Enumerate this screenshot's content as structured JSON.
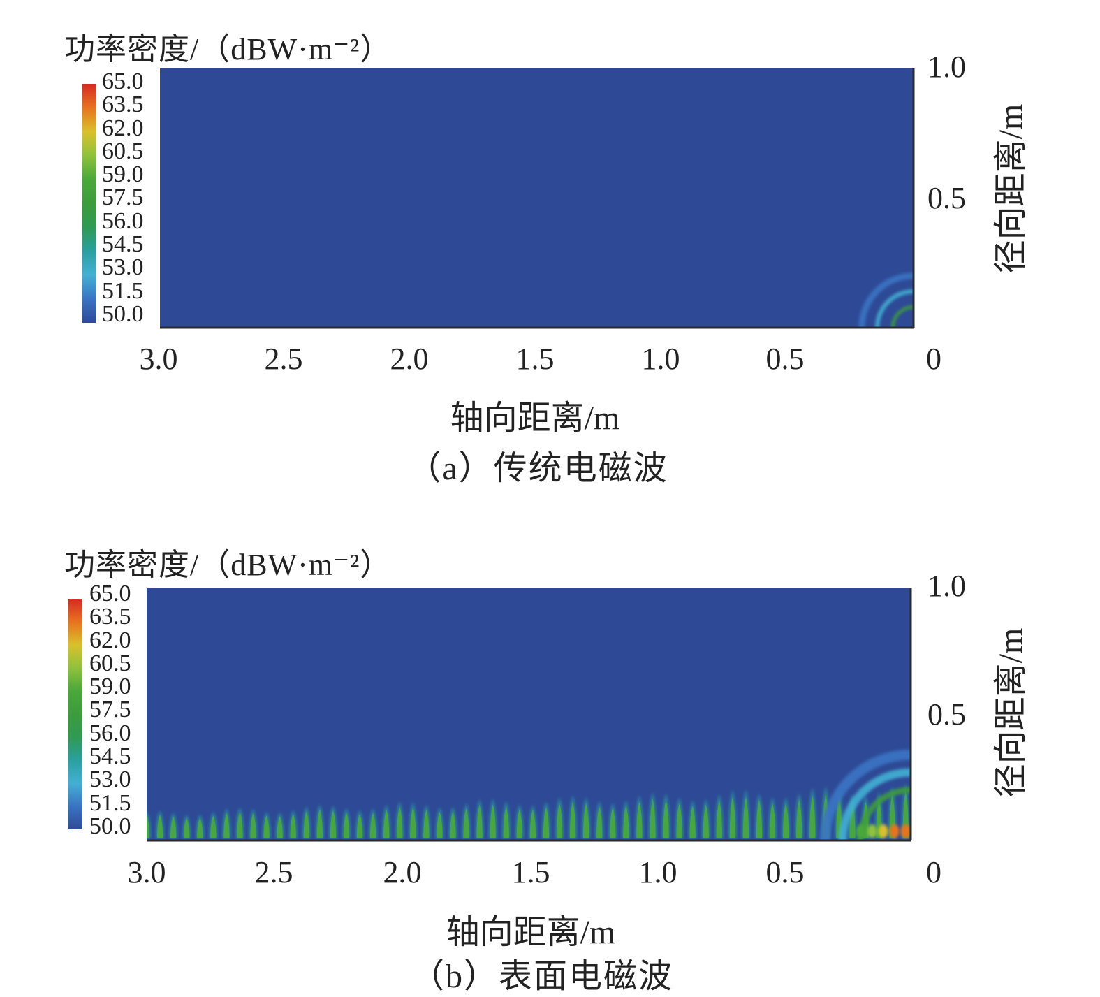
{
  "figure": {
    "colorbar": {
      "title": "功率密度/（dBW·m⁻²）",
      "levels": [
        "65.0",
        "63.5",
        "62.0",
        "60.5",
        "59.0",
        "57.5",
        "56.0",
        "54.5",
        "53.0",
        "51.5",
        "50.0"
      ],
      "colors": [
        "#d42a22",
        "#e8731f",
        "#d9c12a",
        "#8fc23c",
        "#4aa83a",
        "#3c9c3c",
        "#2f9a52",
        "#2aa0a0",
        "#43b0d4",
        "#3a74c4",
        "#2e4a96"
      ]
    },
    "panels": [
      {
        "caption": "（a）传统电磁波",
        "xlabel": "轴向距离/m",
        "ylabel": "径向距离/m"
      },
      {
        "caption": "（b）表面电磁波",
        "xlabel": "轴向距离/m",
        "ylabel": "径向距离/m"
      }
    ]
  },
  "chart_data": [
    {
      "type": "heatmap",
      "caption": "（a）传统电磁波",
      "xlabel": "轴向距离/m",
      "ylabel": "径向距离/m",
      "colorbar_label": "功率密度/（dBW·m⁻²）",
      "colorbar_range": [
        50.0,
        65.0
      ],
      "x_ticks": [
        "3.0",
        "2.5",
        "2.0",
        "1.5",
        "1.0",
        "0.5",
        "0"
      ],
      "y_ticks": [
        "1.0",
        "0.5"
      ],
      "xlim": [
        3.0,
        0
      ],
      "ylim": [
        0,
        1.0
      ],
      "x_axis_reversed": true,
      "background_value": 50.0,
      "features": [
        {
          "kind": "ring",
          "center_x": 0,
          "center_y": 0,
          "radius": 0.08,
          "value": 57.0
        },
        {
          "kind": "ring",
          "center_x": 0,
          "center_y": 0,
          "radius": 0.14,
          "value": 53.0
        },
        {
          "kind": "ring",
          "center_x": 0,
          "center_y": 0,
          "radius": 0.2,
          "value": 51.5
        }
      ]
    },
    {
      "type": "heatmap",
      "caption": "（b）表面电磁波",
      "xlabel": "轴向距离/m",
      "ylabel": "径向距离/m",
      "colorbar_label": "功率密度/（dBW·m⁻²）",
      "colorbar_range": [
        50.0,
        65.0
      ],
      "x_ticks": [
        "3.0",
        "2.5",
        "2.0",
        "1.5",
        "1.0",
        "0.5",
        "0"
      ],
      "y_ticks": [
        "1.0",
        "0.5"
      ],
      "xlim": [
        3.0,
        0
      ],
      "ylim": [
        0,
        1.0
      ],
      "x_axis_reversed": true,
      "background_value": 50.0,
      "surface_lobes": {
        "count": 58,
        "x_start": 0.02,
        "x_end": 3.0,
        "peak_value": 58.5,
        "height_near_source": 0.22,
        "height_far": 0.11
      },
      "features": [
        {
          "kind": "ring",
          "center_x": 0,
          "center_y": 0,
          "radius": 0.2,
          "value": 58.0
        },
        {
          "kind": "ring",
          "center_x": 0,
          "center_y": 0,
          "radius": 0.27,
          "value": 53.0
        },
        {
          "kind": "ring",
          "center_x": 0,
          "center_y": 0,
          "radius": 0.34,
          "value": 51.5
        },
        {
          "kind": "hotspot",
          "x": 0.02,
          "y": 0.02,
          "value": 64.0
        }
      ]
    }
  ]
}
